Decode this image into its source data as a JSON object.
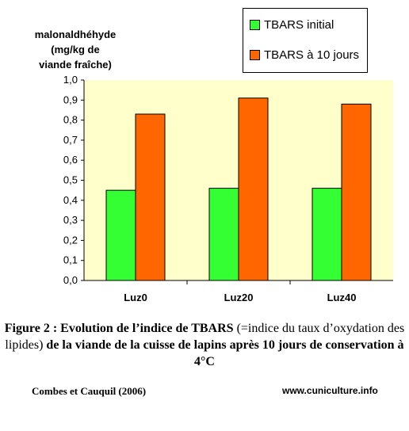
{
  "colors": {
    "plot_bg": "#FFFFCC",
    "initial": "#33FF33",
    "ten_days": "#FF6600"
  },
  "chart_data": {
    "type": "bar",
    "ylabel_lines": [
      "malonaldhéhyde",
      "(mg/kg de",
      "viande fraîche)"
    ],
    "categories": [
      "Luz0",
      "Luz20",
      "Luz40"
    ],
    "y_ticks": [
      "0,0",
      "0,1",
      "0,2",
      "0,3",
      "0,4",
      "0,5",
      "0,6",
      "0,7",
      "0,8",
      "0,9",
      "1,0"
    ],
    "ylim": [
      0,
      1
    ],
    "series": [
      {
        "name": "TBARS initial",
        "values": [
          0.45,
          0.46,
          0.46
        ]
      },
      {
        "name": "TBARS à 10 jours",
        "values": [
          0.83,
          0.91,
          0.88
        ]
      }
    ],
    "legend_position": "top-right",
    "grid": false
  },
  "caption": {
    "part1": "Figure 2 : Evolution de l’indice de TBARS",
    "part2": " (=indice du taux d’oxydation des lipides) ",
    "part3": "de la viande de la cuisse de lapins après 10 jours de conservation à 4°C"
  },
  "footer": {
    "source": "Combes et Cauquil (2006)",
    "website": "www.cuniculture.info"
  }
}
